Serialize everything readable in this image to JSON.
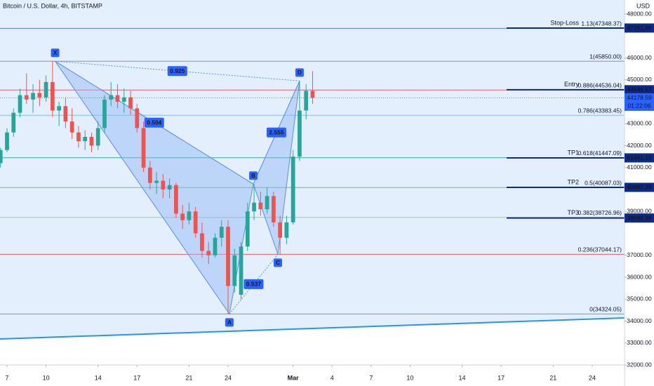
{
  "header": {
    "symbol": "Bitcoin / U.S. Dollar, 4h, BITSTAMP",
    "currency": "USD"
  },
  "chart_data": {
    "type": "candlestick",
    "x": [
      6.5,
      7,
      7.5,
      8,
      8.5,
      9,
      9.5,
      10,
      10.5,
      11,
      11.5,
      12,
      12.5,
      13,
      13.5,
      14,
      14.5,
      15,
      15.5,
      16,
      16.5,
      17,
      17.5,
      18,
      18.5,
      19,
      19.5,
      20,
      20.5,
      21,
      21.5,
      22,
      22.5,
      23,
      23.5,
      24,
      24.5,
      25,
      25.5,
      26,
      26.5,
      27,
      27.5,
      28,
      28.5,
      29,
      29.5,
      30,
      30.5
    ],
    "open": [
      41200,
      41800,
      42600,
      43500,
      44300,
      44100,
      44400,
      44200,
      44900,
      43600,
      43800,
      43100,
      42600,
      42200,
      42400,
      42000,
      42800,
      44100,
      44300,
      44000,
      44200,
      43700,
      42800,
      41000,
      40300,
      40400,
      40000,
      40200,
      38900,
      38600,
      39000,
      38000,
      37200,
      37000,
      37800,
      38300,
      35600,
      35200,
      37400,
      39000,
      39400,
      39100,
      39700,
      38500,
      37800,
      38500,
      41500,
      43600,
      44500
    ],
    "high": [
      41900,
      42800,
      43700,
      44600,
      45300,
      44800,
      45000,
      45200,
      45850,
      44000,
      44200,
      43700,
      42900,
      42700,
      42600,
      43100,
      44300,
      44900,
      44800,
      44600,
      44500,
      43900,
      43100,
      41300,
      40800,
      40700,
      40500,
      40300,
      39300,
      39400,
      39200,
      38500,
      37600,
      38000,
      38600,
      38600,
      37300,
      37600,
      39400,
      40250,
      39900,
      40100,
      39900,
      38800,
      38800,
      41800,
      44950,
      44800,
      45400
    ],
    "low": [
      41000,
      41700,
      42400,
      43300,
      43900,
      43500,
      43800,
      44000,
      43300,
      42900,
      42800,
      42300,
      41900,
      41800,
      41700,
      41800,
      42600,
      43800,
      43700,
      43500,
      43400,
      42600,
      40800,
      40000,
      39800,
      39600,
      39600,
      38700,
      38200,
      38400,
      37800,
      36900,
      36600,
      36900,
      37400,
      34324,
      35300,
      35000,
      37200,
      38600,
      38800,
      38900,
      38300,
      37044,
      37500,
      38400,
      41300,
      43200,
      43900
    ],
    "close": [
      41800,
      42600,
      43500,
      44300,
      44100,
      44400,
      44200,
      44900,
      43600,
      43800,
      43100,
      42600,
      42200,
      42400,
      42000,
      42800,
      44100,
      44300,
      44000,
      44200,
      43700,
      42800,
      41000,
      40300,
      40400,
      40000,
      40200,
      38900,
      38600,
      39000,
      38000,
      37200,
      37000,
      37800,
      38300,
      35600,
      37000,
      37400,
      39000,
      39400,
      39100,
      39700,
      38500,
      37800,
      38500,
      41500,
      43600,
      44500,
      44178.59
    ],
    "up_color": "#26a69a",
    "down_color": "#ef5350",
    "xlim": [
      6.46,
      54.49
    ],
    "xticks": [
      7,
      10,
      14,
      17,
      21,
      24,
      {
        "value": 29,
        "label": "Mar"
      },
      {
        "value": 32,
        "label": "4"
      },
      {
        "value": 35,
        "label": "7"
      },
      {
        "value": 38,
        "label": "10"
      },
      {
        "value": 42,
        "label": "14"
      },
      {
        "value": 45,
        "label": "17"
      },
      {
        "value": 49,
        "label": "21"
      },
      {
        "value": 52,
        "label": "24"
      }
    ],
    "ylim": [
      32000,
      48640
    ],
    "yticks": [
      {
        "value": 48000,
        "label": "48000.00"
      },
      {
        "value": 46000,
        "label": "46000.00"
      },
      {
        "value": 45000,
        "label": "45000.00"
      },
      {
        "value": 43000,
        "label": "43000.00"
      },
      {
        "value": 42000,
        "label": "42000.00"
      },
      {
        "value": 41000,
        "label": "41000.00"
      },
      {
        "value": 39000,
        "label": "39000.00"
      },
      {
        "value": 37000,
        "label": "37000.00"
      },
      {
        "value": 36000,
        "label": "36000.00"
      },
      {
        "value": 35000,
        "label": "35000.00"
      },
      {
        "value": 34000,
        "label": "34000.00"
      },
      {
        "value": 33000,
        "label": "33000.00"
      },
      {
        "value": 32000,
        "label": "32000.00"
      }
    ],
    "levels": [
      {
        "label": "1.13(47348.37)",
        "value": 47348.37,
        "color": "#2962ff"
      },
      {
        "label": "1(45850.00)",
        "value": 45850,
        "color": "#787b86"
      },
      {
        "label": "0.886(44536.04)",
        "value": 44536.04,
        "color": "#f23645"
      },
      {
        "label": "0.786(43383.45)",
        "value": 43383.45,
        "color": "#64b5f6"
      },
      {
        "label": "0.618(41447.09)",
        "value": 41447.09,
        "color": "#089981"
      },
      {
        "label": "0.5(40087.03)",
        "value": 40087.03,
        "color": "#4caf50"
      },
      {
        "label": "0.382(38726.96)",
        "value": 38726.96,
        "color": "#81c784"
      },
      {
        "label": "0.236(37044.17)",
        "value": 37044.17,
        "color": "#f23645"
      },
      {
        "label": "0(34324.05)",
        "value": 34324.05,
        "color": "#787b86"
      }
    ],
    "orders": [
      {
        "name": "Stop-Loss",
        "value": 47361.96
      },
      {
        "name": "Entry",
        "value": 44549.57
      },
      {
        "name": "TP1",
        "value": 41441.15
      },
      {
        "name": "TP2",
        "value": 40097.38
      },
      {
        "name": "TP3",
        "value": 38698.98
      }
    ],
    "last_price": 44178.59,
    "countdown": "01:22:06",
    "pattern": {
      "points": [
        {
          "label": "X",
          "x": 10.7,
          "y": 45850
        },
        {
          "label": "A",
          "x": 24.1,
          "y": 34324
        },
        {
          "label": "B",
          "x": 25.94,
          "y": 40250
        },
        {
          "label": "C",
          "x": 27.83,
          "y": 37044
        },
        {
          "label": "D",
          "x": 29.5,
          "y": 44950
        }
      ],
      "ratios": [
        {
          "label": "0.925",
          "from": 0,
          "to": 4
        },
        {
          "label": "0.504",
          "from": 0,
          "to": 2
        },
        {
          "label": "0.537",
          "from": 1,
          "to": 3
        },
        {
          "label": "2.555",
          "from": 2,
          "to": 4
        }
      ]
    },
    "trendline": {
      "x": [
        6.46,
        54.49
      ],
      "y": [
        33184,
        34144
      ]
    }
  }
}
